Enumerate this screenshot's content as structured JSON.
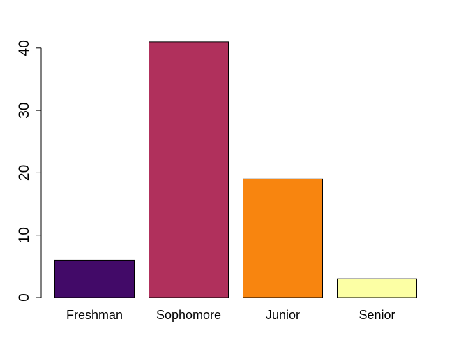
{
  "chart_data": {
    "type": "bar",
    "title": "",
    "xlabel": "",
    "ylabel": "",
    "categories": [
      "Freshman",
      "Sophomore",
      "Junior",
      "Senior"
    ],
    "values": [
      6,
      41,
      19,
      3
    ],
    "colors": [
      "#420A68",
      "#B0305C",
      "#F8850F",
      "#FCFFA4"
    ],
    "bar_border_color": "#000000",
    "ylim": [
      0,
      41
    ],
    "yticks": [
      0,
      10,
      20,
      30,
      40
    ],
    "grid": false,
    "legend": "none"
  }
}
